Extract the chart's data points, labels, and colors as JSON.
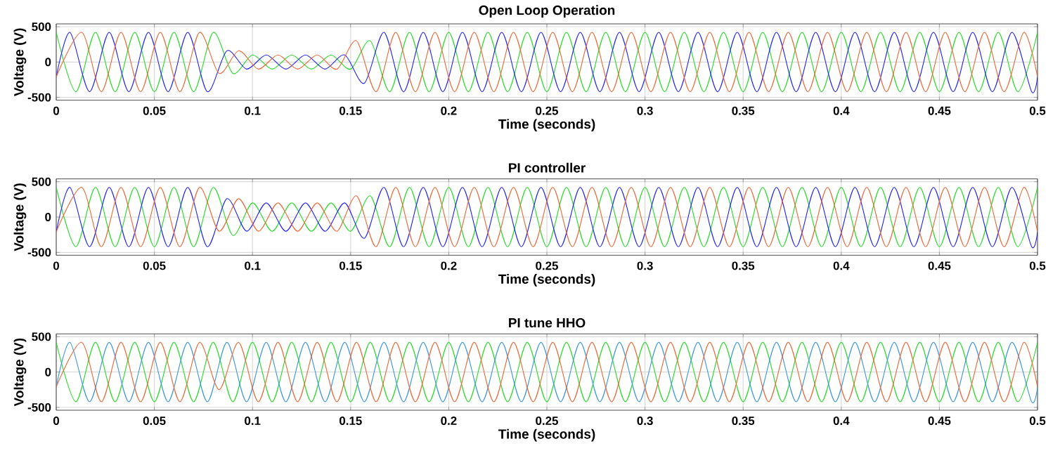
{
  "chart_data": [
    {
      "type": "line",
      "title": "Open Loop Operation",
      "xlabel": "Time (seconds)",
      "ylabel": "Voltage (V)",
      "xlim": [
        0,
        0.5
      ],
      "ylim": [
        -540,
        540
      ],
      "xticks": [
        0,
        0.05,
        0.1,
        0.15,
        0.2,
        0.25,
        0.3,
        0.35,
        0.4,
        0.45,
        0.5
      ],
      "yticks": [
        -500,
        0,
        500
      ],
      "grid": true,
      "series": [
        {
          "color": "#22dd22",
          "x": [
            0,
            0.01,
            0.02,
            0.03,
            0.04,
            0.05,
            0.06,
            0.07,
            0.08,
            0.09,
            0.1,
            0.11,
            0.12,
            0.13,
            0.14,
            0.15,
            0.16,
            0.17,
            0.18,
            0.19,
            0.2,
            0.21,
            0.22,
            0.23,
            0.24,
            0.25,
            0.26,
            0.27,
            0.28,
            0.29,
            0.3,
            0.31,
            0.32,
            0.33,
            0.34,
            0.35,
            0.36,
            0.37,
            0.38,
            0.39,
            0.4,
            0.41,
            0.42,
            0.43,
            0.44,
            0.45,
            0.46,
            0.47,
            0.48,
            0.49,
            0.5
          ],
          "values": [
            420,
            -420,
            420,
            -420,
            420,
            -420,
            420,
            -420,
            420,
            -160,
            100,
            -100,
            100,
            -100,
            100,
            -100,
            300,
            -420,
            420,
            -420,
            420,
            -420,
            420,
            -420,
            420,
            -420,
            420,
            -420,
            420,
            -420,
            420,
            -420,
            420,
            -420,
            420,
            -420,
            420,
            -420,
            420,
            -420,
            420,
            -420,
            420,
            -420,
            420,
            -420,
            420,
            -420,
            420,
            -420,
            420
          ]
        },
        {
          "color": "#2222ff",
          "x": [
            0,
            0.007,
            0.017,
            0.027,
            0.037,
            0.047,
            0.057,
            0.067,
            0.077,
            0.087,
            0.097,
            0.107,
            0.117,
            0.127,
            0.137,
            0.147,
            0.157,
            0.167,
            0.177,
            0.187,
            0.197,
            0.207,
            0.217,
            0.227,
            0.237,
            0.247,
            0.257,
            0.267,
            0.277,
            0.287,
            0.297,
            0.307,
            0.317,
            0.327,
            0.337,
            0.347,
            0.357,
            0.367,
            0.377,
            0.387,
            0.397,
            0.407,
            0.417,
            0.427,
            0.437,
            0.447,
            0.457,
            0.467,
            0.477,
            0.487,
            0.497,
            0.5
          ],
          "values": [
            -210,
            420,
            -420,
            420,
            -420,
            420,
            -420,
            420,
            -420,
            160,
            -100,
            100,
            -100,
            100,
            -100,
            100,
            -300,
            420,
            -420,
            420,
            -420,
            420,
            -420,
            420,
            -420,
            420,
            -420,
            420,
            -420,
            420,
            -420,
            420,
            -420,
            420,
            -420,
            420,
            -420,
            420,
            -420,
            420,
            -420,
            420,
            -420,
            420,
            -420,
            420,
            -420,
            420,
            -420,
            420,
            -420,
            -210
          ]
        },
        {
          "color": "#ee6633",
          "x": [
            0,
            0.013,
            0.023,
            0.033,
            0.043,
            0.053,
            0.063,
            0.073,
            0.083,
            0.093,
            0.103,
            0.113,
            0.123,
            0.133,
            0.143,
            0.153,
            0.163,
            0.173,
            0.183,
            0.193,
            0.203,
            0.213,
            0.223,
            0.233,
            0.243,
            0.253,
            0.263,
            0.273,
            0.283,
            0.293,
            0.303,
            0.313,
            0.323,
            0.333,
            0.343,
            0.353,
            0.363,
            0.373,
            0.383,
            0.393,
            0.403,
            0.413,
            0.423,
            0.433,
            0.443,
            0.453,
            0.463,
            0.473,
            0.483,
            0.493,
            0.5
          ],
          "values": [
            -210,
            420,
            -420,
            420,
            -420,
            420,
            -420,
            420,
            -160,
            160,
            -100,
            100,
            -100,
            100,
            -100,
            300,
            -420,
            420,
            -420,
            420,
            -420,
            420,
            -420,
            420,
            -420,
            420,
            -420,
            420,
            -420,
            420,
            -420,
            420,
            -420,
            420,
            -420,
            420,
            -420,
            420,
            -420,
            420,
            -420,
            420,
            -420,
            420,
            -420,
            420,
            -420,
            420,
            -420,
            420,
            -210
          ]
        }
      ]
    },
    {
      "type": "line",
      "title": "PI controller",
      "xlabel": "Time (seconds)",
      "ylabel": "Voltage (V)",
      "xlim": [
        0,
        0.5
      ],
      "ylim": [
        -540,
        540
      ],
      "xticks": [
        0,
        0.05,
        0.1,
        0.15,
        0.2,
        0.25,
        0.3,
        0.35,
        0.4,
        0.45,
        0.5
      ],
      "yticks": [
        -500,
        0,
        500
      ],
      "grid": true,
      "series": [
        {
          "color": "#22dd22",
          "x": [
            0,
            0.01,
            0.02,
            0.03,
            0.04,
            0.05,
            0.06,
            0.07,
            0.08,
            0.09,
            0.1,
            0.11,
            0.12,
            0.13,
            0.14,
            0.15,
            0.16,
            0.17,
            0.18,
            0.19,
            0.2,
            0.21,
            0.22,
            0.23,
            0.24,
            0.25,
            0.26,
            0.27,
            0.28,
            0.29,
            0.3,
            0.31,
            0.32,
            0.33,
            0.34,
            0.35,
            0.36,
            0.37,
            0.38,
            0.39,
            0.4,
            0.41,
            0.42,
            0.43,
            0.44,
            0.45,
            0.46,
            0.47,
            0.48,
            0.49,
            0.5
          ],
          "values": [
            420,
            -420,
            420,
            -420,
            420,
            -420,
            420,
            -420,
            420,
            -260,
            200,
            -200,
            200,
            -200,
            200,
            -200,
            300,
            -420,
            420,
            -420,
            420,
            -420,
            420,
            -420,
            420,
            -420,
            420,
            -420,
            420,
            -420,
            420,
            -420,
            420,
            -420,
            420,
            -420,
            420,
            -420,
            420,
            -420,
            420,
            -420,
            420,
            -420,
            420,
            -420,
            420,
            -420,
            420,
            -420,
            420
          ]
        },
        {
          "color": "#2222ff",
          "x": [
            0,
            0.007,
            0.017,
            0.027,
            0.037,
            0.047,
            0.057,
            0.067,
            0.077,
            0.087,
            0.097,
            0.107,
            0.117,
            0.127,
            0.137,
            0.147,
            0.157,
            0.167,
            0.177,
            0.187,
            0.197,
            0.207,
            0.217,
            0.227,
            0.237,
            0.247,
            0.257,
            0.267,
            0.277,
            0.287,
            0.297,
            0.307,
            0.317,
            0.327,
            0.337,
            0.347,
            0.357,
            0.367,
            0.377,
            0.387,
            0.397,
            0.407,
            0.417,
            0.427,
            0.437,
            0.447,
            0.457,
            0.467,
            0.477,
            0.487,
            0.497,
            0.5
          ],
          "values": [
            -210,
            420,
            -420,
            420,
            -420,
            420,
            -420,
            420,
            -420,
            260,
            -200,
            200,
            -200,
            200,
            -200,
            200,
            -300,
            420,
            -420,
            420,
            -420,
            420,
            -420,
            420,
            -420,
            420,
            -420,
            420,
            -420,
            420,
            -420,
            420,
            -420,
            420,
            -420,
            420,
            -420,
            420,
            -420,
            420,
            -420,
            420,
            -420,
            420,
            -420,
            420,
            -420,
            420,
            -420,
            420,
            -420,
            -210
          ]
        },
        {
          "color": "#ee6633",
          "x": [
            0,
            0.013,
            0.023,
            0.033,
            0.043,
            0.053,
            0.063,
            0.073,
            0.083,
            0.093,
            0.103,
            0.113,
            0.123,
            0.133,
            0.143,
            0.153,
            0.163,
            0.173,
            0.183,
            0.193,
            0.203,
            0.213,
            0.223,
            0.233,
            0.243,
            0.253,
            0.263,
            0.273,
            0.283,
            0.293,
            0.303,
            0.313,
            0.323,
            0.333,
            0.343,
            0.353,
            0.363,
            0.373,
            0.383,
            0.393,
            0.403,
            0.413,
            0.423,
            0.433,
            0.443,
            0.453,
            0.463,
            0.473,
            0.483,
            0.493,
            0.5
          ],
          "values": [
            -210,
            420,
            -420,
            420,
            -420,
            420,
            -420,
            420,
            -200,
            260,
            -200,
            200,
            -200,
            200,
            -200,
            300,
            -420,
            420,
            -420,
            420,
            -420,
            420,
            -420,
            420,
            -420,
            420,
            -420,
            420,
            -420,
            420,
            -420,
            420,
            -420,
            420,
            -420,
            420,
            -420,
            420,
            -420,
            420,
            -420,
            420,
            -420,
            420,
            -420,
            420,
            -420,
            420,
            -420,
            420,
            -210
          ]
        }
      ]
    },
    {
      "type": "line",
      "title": "PI tune HHO",
      "xlabel": "Time (seconds)",
      "ylabel": "Voltage (V)",
      "xlim": [
        0,
        0.5
      ],
      "ylim": [
        -540,
        540
      ],
      "xticks": [
        0,
        0.05,
        0.1,
        0.15,
        0.2,
        0.25,
        0.3,
        0.35,
        0.4,
        0.45,
        0.5
      ],
      "yticks": [
        -500,
        0,
        500
      ],
      "grid": true,
      "series": [
        {
          "color": "#22dd22",
          "x": [
            0,
            0.01,
            0.02,
            0.03,
            0.04,
            0.05,
            0.06,
            0.07,
            0.08,
            0.09,
            0.1,
            0.11,
            0.12,
            0.13,
            0.14,
            0.15,
            0.16,
            0.17,
            0.18,
            0.19,
            0.2,
            0.21,
            0.22,
            0.23,
            0.24,
            0.25,
            0.26,
            0.27,
            0.28,
            0.29,
            0.3,
            0.31,
            0.32,
            0.33,
            0.34,
            0.35,
            0.36,
            0.37,
            0.38,
            0.39,
            0.4,
            0.41,
            0.42,
            0.43,
            0.44,
            0.45,
            0.46,
            0.47,
            0.48,
            0.49,
            0.5
          ],
          "values": [
            420,
            -420,
            420,
            -420,
            420,
            -420,
            420,
            -420,
            420,
            -420,
            420,
            -420,
            420,
            -420,
            420,
            -420,
            420,
            -420,
            420,
            -420,
            420,
            -420,
            420,
            -420,
            420,
            -420,
            420,
            -420,
            420,
            -420,
            420,
            -420,
            420,
            -420,
            420,
            -420,
            420,
            -420,
            420,
            -420,
            420,
            -420,
            420,
            -420,
            420,
            -420,
            420,
            -420,
            420,
            -420,
            420
          ]
        },
        {
          "color": "#3a96e0",
          "x": [
            0,
            0.007,
            0.017,
            0.027,
            0.037,
            0.047,
            0.057,
            0.067,
            0.077,
            0.087,
            0.097,
            0.107,
            0.117,
            0.127,
            0.137,
            0.147,
            0.157,
            0.167,
            0.177,
            0.187,
            0.197,
            0.207,
            0.217,
            0.227,
            0.237,
            0.247,
            0.257,
            0.267,
            0.277,
            0.287,
            0.297,
            0.307,
            0.317,
            0.327,
            0.337,
            0.347,
            0.357,
            0.367,
            0.377,
            0.387,
            0.397,
            0.407,
            0.417,
            0.427,
            0.437,
            0.447,
            0.457,
            0.467,
            0.477,
            0.487,
            0.497,
            0.5
          ],
          "values": [
            -210,
            420,
            -420,
            420,
            -420,
            420,
            -420,
            420,
            -420,
            420,
            -420,
            420,
            -420,
            420,
            -420,
            420,
            -420,
            420,
            -420,
            420,
            -420,
            420,
            -420,
            420,
            -420,
            420,
            -420,
            420,
            -420,
            420,
            -420,
            420,
            -420,
            420,
            -420,
            420,
            -420,
            420,
            -420,
            420,
            -420,
            420,
            -420,
            420,
            -420,
            420,
            -420,
            420,
            -420,
            420,
            -420,
            -210
          ]
        },
        {
          "color": "#ee6633",
          "x": [
            0,
            0.013,
            0.023,
            0.033,
            0.043,
            0.053,
            0.063,
            0.073,
            0.083,
            0.093,
            0.103,
            0.113,
            0.123,
            0.133,
            0.143,
            0.153,
            0.163,
            0.173,
            0.183,
            0.193,
            0.203,
            0.213,
            0.223,
            0.233,
            0.243,
            0.253,
            0.263,
            0.273,
            0.283,
            0.293,
            0.303,
            0.313,
            0.323,
            0.333,
            0.343,
            0.353,
            0.363,
            0.373,
            0.383,
            0.393,
            0.403,
            0.413,
            0.423,
            0.433,
            0.443,
            0.453,
            0.463,
            0.473,
            0.483,
            0.493,
            0.5
          ],
          "values": [
            -210,
            420,
            -420,
            420,
            -420,
            420,
            -420,
            420,
            -250,
            420,
            -420,
            420,
            -420,
            420,
            -420,
            420,
            -420,
            420,
            -420,
            420,
            -420,
            420,
            -420,
            420,
            -420,
            420,
            -420,
            420,
            -420,
            420,
            -420,
            420,
            -420,
            420,
            -420,
            420,
            -420,
            420,
            -420,
            420,
            -420,
            420,
            -420,
            420,
            -420,
            420,
            -420,
            420,
            -420,
            420,
            -210
          ]
        }
      ]
    }
  ]
}
